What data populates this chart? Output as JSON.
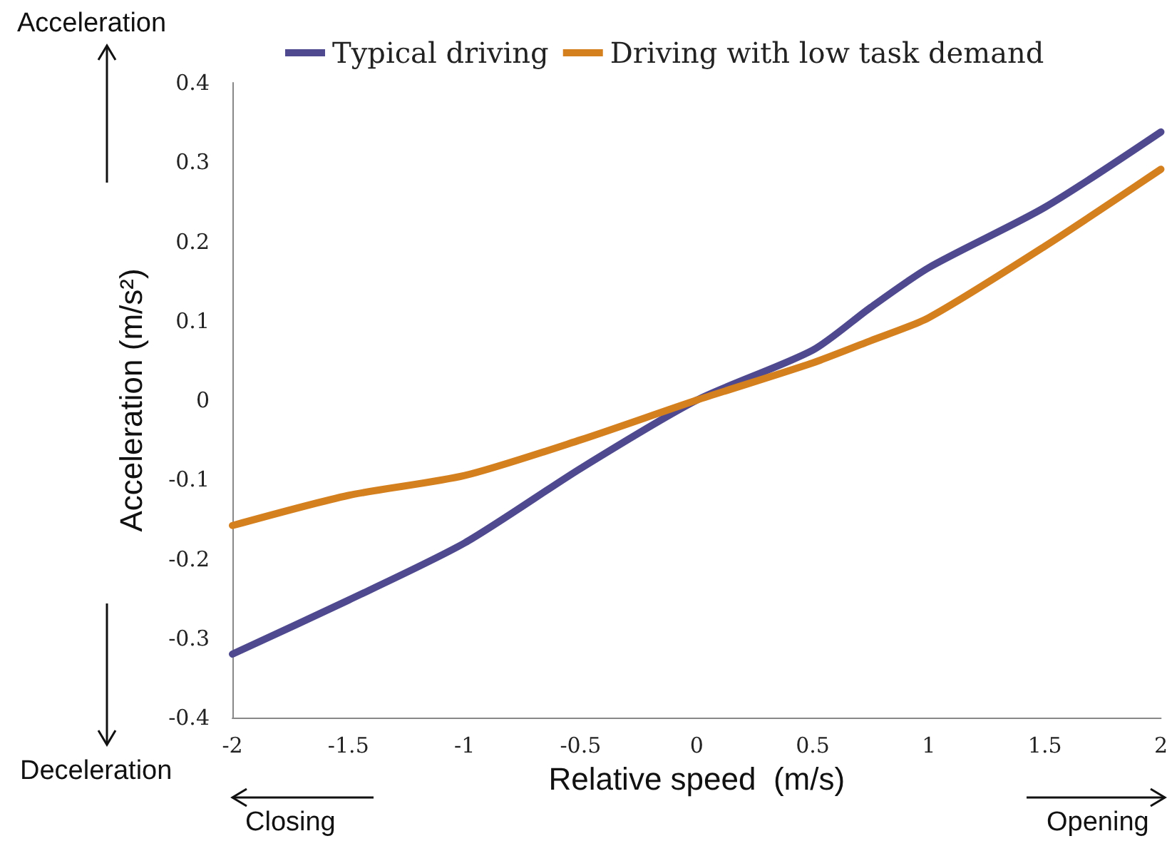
{
  "chart_data": {
    "type": "line",
    "xlabel": "Relative speed  (m/s)",
    "ylabel": "Acceleration (m/s²)",
    "x": [
      -2,
      -1.5,
      -1,
      -0.5,
      0,
      0.5,
      0.75,
      1,
      1.5,
      2
    ],
    "series": [
      {
        "name": "Typical driving",
        "color": "#4f4a8f",
        "values": [
          -0.32,
          -0.252,
          -0.18,
          -0.086,
          0,
          0.063,
          0.117,
          0.167,
          0.243,
          0.338
        ]
      },
      {
        "name": "Driving with low task demand",
        "color": "#d5801f",
        "values": [
          -0.158,
          -0.12,
          -0.095,
          -0.05,
          0,
          0.047,
          0.075,
          0.104,
          0.194,
          0.291
        ]
      }
    ],
    "xlim": [
      -2,
      2
    ],
    "xticks": [
      -2,
      -1.5,
      -1,
      -0.5,
      0,
      0.5,
      1,
      1.5,
      2
    ],
    "ylim": [
      -0.4,
      0.4
    ],
    "yticks": [
      -0.4,
      -0.3,
      -0.2,
      -0.1,
      0,
      0.1,
      0.2,
      0.3,
      0.4
    ],
    "grid": false,
    "legend": "top",
    "marker": "none",
    "line_style": "solid",
    "annotations": [
      "Acceleration",
      "Deceleration",
      "Closing",
      "Opening"
    ]
  }
}
